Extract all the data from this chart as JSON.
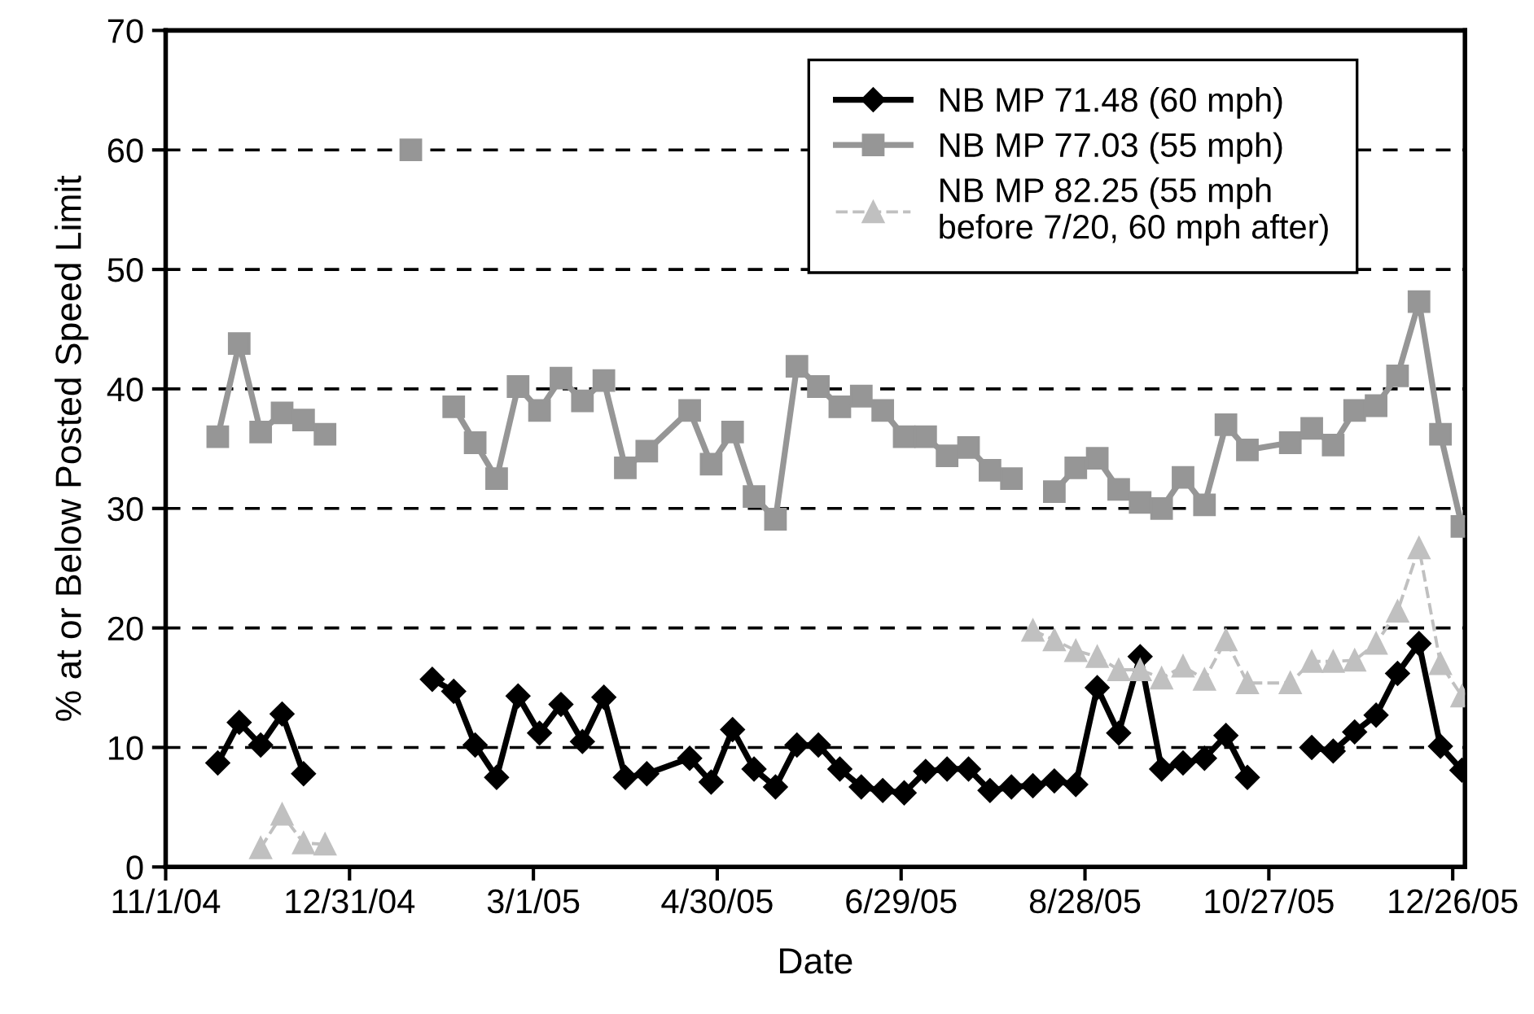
{
  "chart_data": {
    "type": "line",
    "xlabel": "Date",
    "ylabel": "% at or Below Posted Speed Limit",
    "xlim": [
      "2004-11-01",
      "2005-12-30"
    ],
    "ylim": [
      0,
      70
    ],
    "yticks": [
      0,
      10,
      20,
      30,
      40,
      50,
      60,
      70
    ],
    "xticks": [
      {
        "value": "2004-11-01",
        "label": "11/1/04"
      },
      {
        "value": "2004-12-31",
        "label": "12/31/04"
      },
      {
        "value": "2005-03-01",
        "label": "3/1/05"
      },
      {
        "value": "2005-04-30",
        "label": "4/30/05"
      },
      {
        "value": "2005-06-29",
        "label": "6/29/05"
      },
      {
        "value": "2005-08-28",
        "label": "8/28/05"
      },
      {
        "value": "2005-10-27",
        "label": "10/27/05"
      },
      {
        "value": "2005-12-26",
        "label": "12/26/05"
      }
    ],
    "grid": "y",
    "legend": "top right",
    "series": [
      {
        "name": "NB MP 71.48 (60 mph)",
        "color": "#000000",
        "marker": "diamond",
        "line_style": "solid",
        "x": [
          "2004-11-18",
          "2004-11-25",
          "2004-12-02",
          "2004-12-09",
          "2004-12-16",
          "2004-12-23",
          "2005-01-27",
          "2005-02-03",
          "2005-02-10",
          "2005-02-17",
          "2005-02-24",
          "2005-03-03",
          "2005-03-10",
          "2005-03-17",
          "2005-03-24",
          "2005-03-31",
          "2005-04-07",
          "2005-04-21",
          "2005-04-28",
          "2005-05-05",
          "2005-05-12",
          "2005-05-19",
          "2005-05-26",
          "2005-06-02",
          "2005-06-09",
          "2005-06-16",
          "2005-06-23",
          "2005-06-30",
          "2005-07-07",
          "2005-07-14",
          "2005-07-21",
          "2005-07-28",
          "2005-08-04",
          "2005-08-11",
          "2005-08-18",
          "2005-08-25",
          "2005-09-01",
          "2005-09-08",
          "2005-09-15",
          "2005-09-22",
          "2005-09-29",
          "2005-10-06",
          "2005-10-13",
          "2005-10-20",
          "2005-10-27",
          "2005-11-10",
          "2005-11-17",
          "2005-11-24",
          "2005-12-01",
          "2005-12-08",
          "2005-12-15",
          "2005-12-22",
          "2005-12-29"
        ],
        "values": [
          8.7,
          12.1,
          10.2,
          12.8,
          7.8,
          null,
          15.7,
          14.7,
          10.2,
          7.5,
          14.3,
          11.2,
          13.6,
          10.5,
          14.2,
          7.5,
          7.8,
          9.1,
          7.1,
          11.5,
          8.2,
          6.7,
          10.2,
          10.2,
          8.2,
          6.7,
          6.4,
          6.2,
          8.0,
          8.2,
          8.2,
          6.4,
          6.7,
          6.8,
          7.2,
          6.9,
          15.0,
          11.2,
          17.6,
          8.2,
          8.7,
          9.1,
          11.0,
          7.5,
          null,
          10.0,
          9.7,
          11.3,
          12.7,
          16.2,
          18.7,
          10.1,
          8.1
        ]
      },
      {
        "name": "NB MP 77.03 (55 mph)",
        "color": "#969696",
        "marker": "square",
        "line_style": "solid",
        "x": [
          "2004-11-18",
          "2004-11-25",
          "2004-12-02",
          "2004-12-09",
          "2004-12-16",
          "2004-12-23",
          "2004-12-30",
          "2005-01-20",
          "2005-01-27",
          "2005-02-03",
          "2005-02-10",
          "2005-02-17",
          "2005-02-24",
          "2005-03-03",
          "2005-03-10",
          "2005-03-17",
          "2005-03-24",
          "2005-03-31",
          "2005-04-07",
          "2005-04-21",
          "2005-04-28",
          "2005-05-05",
          "2005-05-12",
          "2005-05-19",
          "2005-05-26",
          "2005-06-02",
          "2005-06-09",
          "2005-06-16",
          "2005-06-23",
          "2005-06-30",
          "2005-07-07",
          "2005-07-14",
          "2005-07-21",
          "2005-07-28",
          "2005-08-04",
          "2005-08-11",
          "2005-08-18",
          "2005-08-25",
          "2005-09-01",
          "2005-09-08",
          "2005-09-15",
          "2005-09-22",
          "2005-09-29",
          "2005-10-06",
          "2005-10-13",
          "2005-10-20",
          "2005-11-03",
          "2005-11-10",
          "2005-11-17",
          "2005-11-24",
          "2005-12-01",
          "2005-12-08",
          "2005-12-15",
          "2005-12-22",
          "2005-12-29"
        ],
        "values": [
          36.0,
          43.8,
          36.4,
          38.0,
          37.4,
          36.2,
          null,
          60.0,
          null,
          38.5,
          35.5,
          32.5,
          40.2,
          38.2,
          40.9,
          39.0,
          40.7,
          33.4,
          34.8,
          38.2,
          33.7,
          36.4,
          31.0,
          29.1,
          41.9,
          40.2,
          38.5,
          39.4,
          38.2,
          36.0,
          36.0,
          34.4,
          35.1,
          33.2,
          32.5,
          null,
          31.4,
          33.4,
          34.2,
          31.6,
          30.5,
          30.0,
          32.6,
          30.3,
          37.0,
          34.9,
          35.5,
          36.7,
          35.3,
          38.2,
          38.6,
          41.1,
          47.3,
          36.2,
          28.5
        ]
      },
      {
        "name": "NB MP 82.25 (55 mph\nbefore 7/20, 60 mph after)",
        "color": "#c0c0c0",
        "marker": "triangle",
        "line_style": "dashed",
        "x": [
          "2004-12-02",
          "2004-12-09",
          "2004-12-16",
          "2004-12-23",
          "2005-01-27",
          "2005-08-11",
          "2005-08-18",
          "2005-08-25",
          "2005-09-01",
          "2005-09-08",
          "2005-09-15",
          "2005-09-22",
          "2005-09-29",
          "2005-10-06",
          "2005-10-13",
          "2005-10-20",
          "2005-11-03",
          "2005-11-10",
          "2005-11-17",
          "2005-11-24",
          "2005-12-01",
          "2005-12-08",
          "2005-12-15",
          "2005-12-22",
          "2005-12-29"
        ],
        "values": [
          1.6,
          4.4,
          2.0,
          1.9,
          null,
          19.8,
          19.0,
          18.1,
          17.6,
          16.5,
          16.5,
          15.8,
          16.8,
          15.7,
          19.0,
          15.4,
          15.4,
          17.2,
          17.2,
          17.3,
          18.7,
          21.4,
          26.7,
          17.0,
          14.3
        ]
      }
    ]
  }
}
